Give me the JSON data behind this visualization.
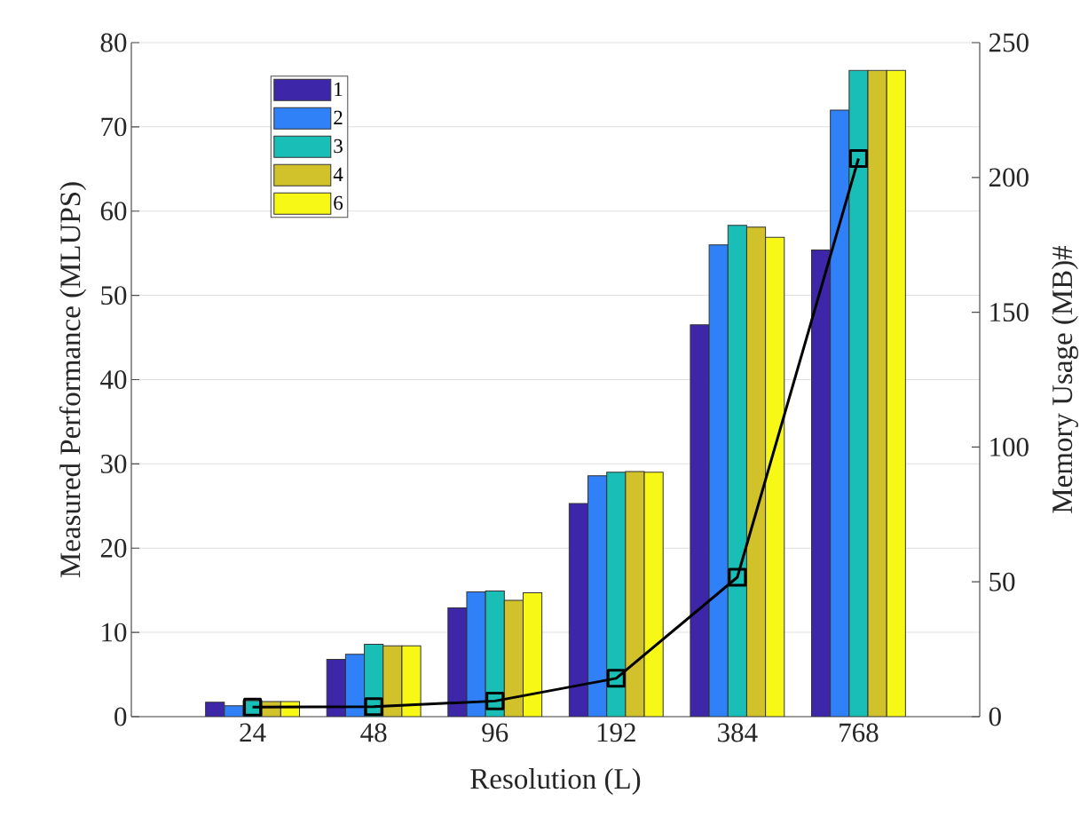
{
  "chart_data": {
    "type": "bar",
    "xlabel": "Resolution (L)",
    "ylabel": "Measured Performance (MLUPS)",
    "y2label": "Memory Usage (MB)#",
    "categories": [
      "24",
      "48",
      "96",
      "192",
      "384",
      "768"
    ],
    "series": [
      {
        "name": "1",
        "color": "#3d27a8",
        "values": [
          1.7,
          6.8,
          12.9,
          25.3,
          46.5,
          55.4
        ]
      },
      {
        "name": "2",
        "color": "#3080f8",
        "values": [
          1.3,
          7.4,
          14.8,
          28.6,
          56.0,
          72.0
        ]
      },
      {
        "name": "3",
        "color": "#19bfb6",
        "values": [
          1.9,
          8.6,
          14.9,
          29.0,
          58.3,
          76.7
        ]
      },
      {
        "name": "4",
        "color": "#d1c12a",
        "values": [
          1.8,
          8.4,
          13.8,
          29.1,
          58.1,
          76.7
        ]
      },
      {
        "name": "6",
        "color": "#f8f817",
        "values": [
          1.8,
          8.4,
          14.7,
          29.0,
          56.9,
          76.7
        ]
      },
      {
        "type": "line",
        "axis": "y2",
        "color": "#000000",
        "marker": "square",
        "values": [
          3.5,
          3.7,
          5.8,
          14.2,
          51.7,
          207
        ]
      }
    ],
    "ylim": [
      0,
      80
    ],
    "yticks": [
      0,
      10,
      20,
      30,
      40,
      50,
      60,
      70,
      80
    ],
    "y2lim": [
      0,
      250
    ],
    "y2ticks": [
      0,
      50,
      100,
      150,
      200,
      250
    ],
    "grid": "y",
    "legend": "top left"
  }
}
